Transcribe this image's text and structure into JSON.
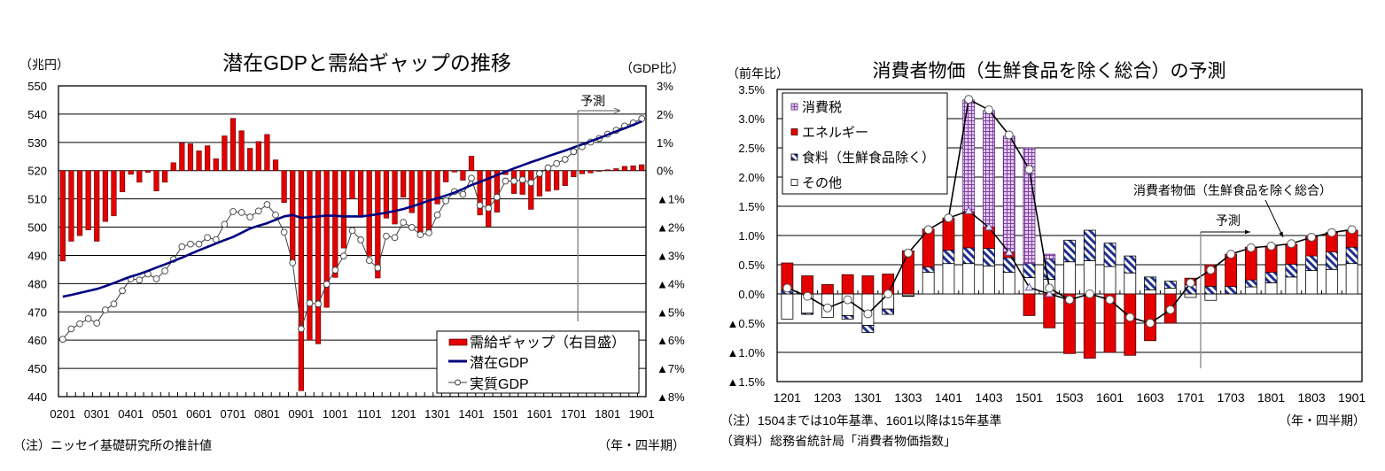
{
  "chart_data": [
    {
      "type": "bar",
      "title": "潜在GDPと需給ギャップの推移",
      "ylabel": "（兆円）",
      "ylabel_right": "（GDP比）",
      "xlabel": "（年・四半期）",
      "ylim": [
        440,
        550
      ],
      "ylim_right": [
        -8,
        3
      ],
      "yticks": [
        "550",
        "540",
        "530",
        "520",
        "510",
        "500",
        "490",
        "480",
        "470",
        "460",
        "450",
        "440"
      ],
      "yticks_right": [
        "3%",
        "2%",
        "1%",
        "0%",
        "▲1%",
        "▲2%",
        "▲3%",
        "▲4%",
        "▲5%",
        "▲6%",
        "▲7%",
        "▲8%"
      ],
      "grid": true,
      "legend_position": "bottom-right",
      "categories": [
        "0201",
        "0202",
        "0203",
        "0204",
        "0301",
        "0302",
        "0303",
        "0304",
        "0401",
        "0402",
        "0403",
        "0404",
        "0501",
        "0502",
        "0503",
        "0504",
        "0601",
        "0602",
        "0603",
        "0604",
        "0701",
        "0702",
        "0703",
        "0704",
        "0801",
        "0802",
        "0803",
        "0804",
        "0901",
        "0902",
        "0903",
        "0904",
        "1001",
        "1002",
        "1003",
        "1004",
        "1101",
        "1102",
        "1103",
        "1104",
        "1201",
        "1202",
        "1203",
        "1204",
        "1301",
        "1302",
        "1303",
        "1304",
        "1401",
        "1402",
        "1403",
        "1404",
        "1501",
        "1502",
        "1503",
        "1504",
        "1601",
        "1602",
        "1603",
        "1604",
        "1701",
        "1702",
        "1703",
        "1704",
        "1801",
        "1802",
        "1803",
        "1804",
        "1901"
      ],
      "xtick_labels": [
        "0201",
        "0301",
        "0401",
        "0501",
        "0601",
        "0701",
        "0801",
        "0901",
        "1001",
        "1101",
        "1201",
        "1301",
        "1401",
        "1501",
        "1601",
        "1701",
        "1801",
        "1901"
      ],
      "forecast_start": "1702",
      "forecast_label": "予測",
      "series": [
        {
          "name": "需給ギャップ（右目盛）",
          "kind": "bar",
          "axis": "right",
          "color": "#E50000",
          "values": [
            -3.2,
            -2.5,
            -2.3,
            -2.1,
            -2.5,
            -1.8,
            -1.6,
            -0.75,
            -0.13,
            -0.41,
            -0.06,
            -0.72,
            -0.41,
            0.28,
            0.98,
            0.95,
            0.7,
            0.88,
            0.42,
            1.23,
            1.85,
            1.41,
            0.79,
            1.03,
            1.28,
            0.38,
            -1.13,
            -3.3,
            -7.79,
            -6.0,
            -6.13,
            -4.84,
            -3.78,
            -2.74,
            -1.0,
            -1.65,
            -3.03,
            -3.8,
            -1.68,
            -1.89,
            -0.94,
            -1.49,
            -2.17,
            -2.22,
            -1.18,
            -0.4,
            -0.05,
            -0.34,
            0.51,
            -1.57,
            -1.99,
            -1.47,
            -0.14,
            -0.81,
            -0.84,
            -1.37,
            -0.9,
            -0.73,
            -0.68,
            -0.53,
            -0.22,
            -0.11,
            -0.08,
            -0.02,
            0.03,
            0.07,
            0.15,
            0.17,
            0.21
          ]
        },
        {
          "name": "潜在GDP",
          "kind": "line",
          "axis": "left",
          "color": "#000080",
          "values": [
            475.4,
            476.0,
            476.7,
            477.4,
            478.1,
            479.1,
            480.2,
            481.4,
            482.5,
            483.4,
            484.5,
            485.7,
            486.8,
            488.0,
            489.2,
            490.5,
            491.8,
            493.0,
            494.2,
            495.4,
            496.5,
            498.0,
            499.5,
            500.5,
            501.4,
            502.6,
            503.8,
            504.3,
            503.3,
            503.5,
            503.8,
            504.1,
            504.0,
            503.8,
            503.8,
            503.8,
            504.1,
            504.6,
            505.1,
            505.7,
            506.4,
            507.3,
            508.3,
            509.4,
            510.2,
            511.2,
            512.2,
            513.5,
            514.9,
            516.0,
            517.2,
            518.4,
            519.6,
            520.8,
            521.9,
            523.0,
            524.0,
            525.1,
            526.1,
            527.1,
            528.2,
            529.3,
            530.4,
            531.5,
            532.7,
            533.9,
            535.0,
            536.2,
            537.4
          ]
        },
        {
          "name": "実質GDP",
          "kind": "line-marker",
          "axis": "left",
          "color": "#404040",
          "values": [
            460.3,
            464,
            465.8,
            467.6,
            466,
            470.7,
            472.8,
            477.5,
            481.7,
            481.3,
            483.4,
            481.7,
            484.5,
            488.6,
            493.1,
            494,
            494,
            496.3,
            495.6,
            501,
            505.5,
            505.2,
            503.6,
            505.7,
            508,
            504.3,
            498.2,
            487.4,
            464,
            473.1,
            472.8,
            479.8,
            484.8,
            489.8,
            498.8,
            495.5,
            488.2,
            485.6,
            496.8,
            496.3,
            501.7,
            499.9,
            497.3,
            498,
            504.3,
            509.3,
            512.6,
            511.6,
            517.3,
            507.7,
            506.7,
            510.6,
            516.3,
            516.3,
            516.8,
            515.7,
            519,
            521,
            522.5,
            524,
            526.7,
            528.5,
            530.1,
            531.4,
            532.9,
            534.3,
            535.8,
            536.9,
            538.4
          ]
        }
      ],
      "legend": [
        {
          "label": "需給ギャップ（右目盛）"
        },
        {
          "label": "潜在GDP"
        },
        {
          "label": "実質GDP"
        }
      ],
      "note": "（注）ニッセイ基礎研究所の推計値"
    },
    {
      "type": "bar",
      "stacked": true,
      "title": "消費者物価（生鮮食品を除く総合）の予測",
      "ylabel": "（前年比）",
      "xlabel": "（年・四半期）",
      "ylim": [
        -1.5,
        3.5
      ],
      "yticks": [
        "3.5%",
        "3.0%",
        "2.5%",
        "2.0%",
        "1.5%",
        "1.0%",
        "0.5%",
        "0.0%",
        "▲0.5%",
        "▲1.0%",
        "▲1.5%"
      ],
      "grid": true,
      "legend_position": "top-left",
      "categories": [
        "1201",
        "1202",
        "1203",
        "1204",
        "1301",
        "1302",
        "1303",
        "1304",
        "1401",
        "1402",
        "1403",
        "1404",
        "1501",
        "1502",
        "1503",
        "1504",
        "1601",
        "1602",
        "1603",
        "1604",
        "1701",
        "1702",
        "1703",
        "1704",
        "1801",
        "1802",
        "1803",
        "1804",
        "1901"
      ],
      "xtick_labels": [
        "1201",
        "1203",
        "1301",
        "1303",
        "1401",
        "1403",
        "1501",
        "1503",
        "1601",
        "1603",
        "1701",
        "1703",
        "1801",
        "1803",
        "1901"
      ],
      "forecast_start": "1702",
      "forecast_label": "予測",
      "annotation": "消費者物価（生鮮食品を除く総合）",
      "series": [
        {
          "name": "その他",
          "kind": "bar",
          "style": "white",
          "color": "#FFFFFF",
          "values": [
            -0.43,
            -0.33,
            -0.4,
            -0.37,
            -0.54,
            -0.26,
            -0.03,
            0.37,
            0.52,
            0.52,
            0.48,
            0.37,
            0.28,
            0.25,
            0.55,
            0.57,
            0.47,
            0.36,
            0.07,
            0.1,
            -0.06,
            -0.11,
            0.0,
            0.12,
            0.19,
            0.29,
            0.4,
            0.42,
            0.52
          ]
        },
        {
          "name": "食料（生鮮食品除く）",
          "kind": "bar",
          "style": "hatch",
          "color": "#1F2F8F",
          "values": [
            0.07,
            -0.02,
            0.0,
            -0.06,
            -0.12,
            -0.09,
            -0.01,
            0.09,
            0.23,
            0.27,
            0.3,
            0.25,
            0.24,
            0.35,
            0.37,
            0.52,
            0.4,
            0.29,
            0.22,
            0.12,
            0.15,
            0.13,
            0.13,
            0.12,
            0.18,
            0.22,
            0.25,
            0.3,
            0.28
          ]
        },
        {
          "name": "エネルギー",
          "kind": "bar",
          "style": "solid",
          "color": "#E50000",
          "values": [
            0.46,
            0.31,
            0.16,
            0.33,
            0.31,
            0.34,
            0.74,
            0.65,
            0.55,
            0.62,
            0.37,
            0.1,
            -0.37,
            -0.58,
            -1.02,
            -1.1,
            -1.0,
            -1.05,
            -0.8,
            -0.5,
            0.12,
            0.37,
            0.55,
            0.56,
            0.45,
            0.34,
            0.33,
            0.33,
            0.29
          ]
        },
        {
          "name": "消費税",
          "kind": "bar",
          "style": "grid",
          "color": "#8040A0",
          "values": [
            0,
            0,
            0,
            0,
            0,
            0,
            0,
            0,
            0,
            1.91,
            1.99,
            1.98,
            1.98,
            0.08,
            0,
            0,
            0,
            0,
            0,
            0,
            0,
            0,
            0,
            0,
            0,
            0,
            0,
            0,
            0
          ]
        },
        {
          "name": "消費者物価（生鮮食品を除く総合）",
          "kind": "line-marker",
          "marker": "circle",
          "color": "#000000",
          "values": [
            0.1,
            -0.04,
            -0.24,
            -0.1,
            -0.34,
            0.0,
            0.7,
            1.1,
            1.3,
            3.33,
            3.15,
            2.72,
            2.13,
            0.1,
            -0.1,
            0.0,
            -0.1,
            -0.4,
            -0.5,
            -0.27,
            0.19,
            0.41,
            0.68,
            0.79,
            0.82,
            0.86,
            0.97,
            1.05,
            1.1
          ]
        },
        {
          "name": "",
          "kind": "line-marker",
          "marker": "triangle",
          "color": "#000000",
          "values": [
            null,
            null,
            null,
            null,
            null,
            null,
            null,
            null,
            1.3,
            1.42,
            1.14,
            0.71,
            0.11,
            0.0,
            -0.1,
            null,
            null,
            null,
            null,
            null,
            null,
            null,
            null,
            null,
            null,
            null,
            null,
            null,
            null
          ]
        }
      ],
      "legend": [
        {
          "label": "消費税",
          "style": "grid"
        },
        {
          "label": "エネルギー",
          "style": "solid"
        },
        {
          "label": "食料（生鮮食品除く）",
          "style": "hatch"
        },
        {
          "label": "その他",
          "style": "white"
        }
      ],
      "notes": [
        "（注）1504までは10年基準、1601以降は15年基準",
        "（資料）総務省統計局「消費者物価指数」"
      ]
    }
  ]
}
